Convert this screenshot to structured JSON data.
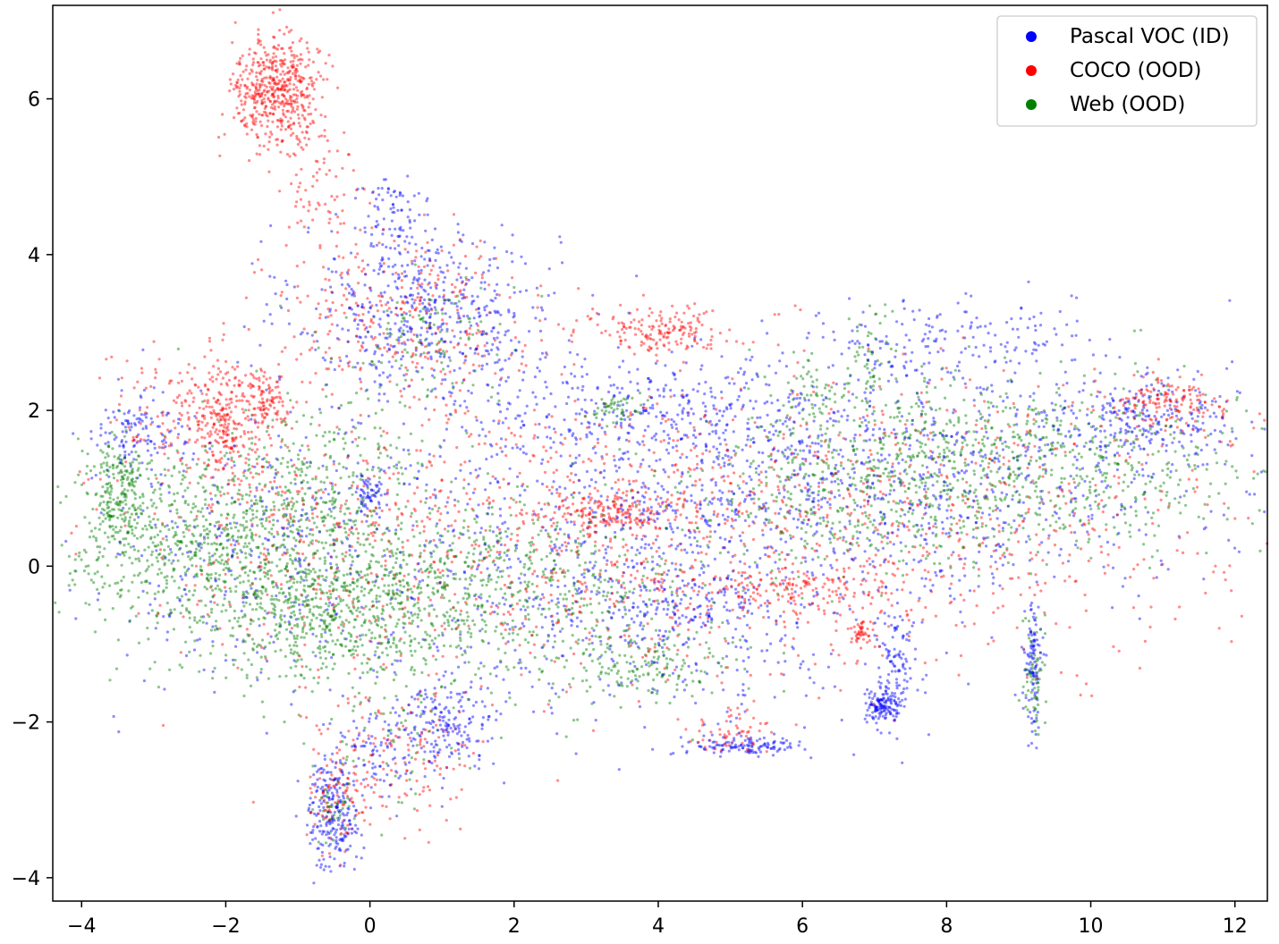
{
  "chart_data": {
    "type": "scatter",
    "title": "",
    "xlabel": "",
    "ylabel": "",
    "xlim": [
      -4.4,
      12.45
    ],
    "ylim": [
      -4.3,
      7.2
    ],
    "x_ticks": [
      -4,
      -2,
      0,
      2,
      4,
      6,
      8,
      10,
      12
    ],
    "y_ticks": [
      -4,
      -2,
      0,
      2,
      4,
      6
    ],
    "x_tick_labels": [
      "−4",
      "−2",
      "0",
      "2",
      "4",
      "6",
      "8",
      "10",
      "12"
    ],
    "y_tick_labels": [
      "−4",
      "−2",
      "0",
      "2",
      "4",
      "6"
    ],
    "grid": false,
    "legend_position": "top-right",
    "series": [
      {
        "name": "Pascal VOC (ID)",
        "color": "#0000ff",
        "clusters": [
          {
            "center": [
              0.8,
              3.3
            ],
            "spread": [
              0.9,
              0.55
            ],
            "count": 520
          },
          {
            "center": [
              -0.5,
              -3.2
            ],
            "spread": [
              0.18,
              0.35
            ],
            "count": 220
          },
          {
            "center": [
              1.1,
              -2.0
            ],
            "spread": [
              0.35,
              0.25
            ],
            "count": 150
          },
          {
            "center": [
              0.2,
              -2.4
            ],
            "spread": [
              0.45,
              0.3
            ],
            "count": 120
          },
          {
            "center": [
              -3.2,
              1.7
            ],
            "spread": [
              0.3,
              0.25
            ],
            "count": 110
          },
          {
            "center": [
              5.2,
              -2.3
            ],
            "spread": [
              0.4,
              0.06
            ],
            "count": 120
          },
          {
            "center": [
              7.1,
              -1.8
            ],
            "spread": [
              0.12,
              0.1
            ],
            "count": 120
          },
          {
            "center": [
              7.3,
              -1.3
            ],
            "spread": [
              0.15,
              0.4
            ],
            "count": 120
          },
          {
            "center": [
              9.2,
              -1.3
            ],
            "spread": [
              0.06,
              0.4
            ],
            "count": 110
          },
          {
            "center": [
              3.6,
              2.0
            ],
            "spread": [
              1.4,
              0.35
            ],
            "count": 280
          },
          {
            "center": [
              7.0,
              1.2
            ],
            "spread": [
              2.6,
              0.8
            ],
            "count": 1100
          },
          {
            "center": [
              8.0,
              2.9
            ],
            "spread": [
              0.9,
              0.25
            ],
            "count": 150
          },
          {
            "center": [
              3.5,
              0.0
            ],
            "spread": [
              2.0,
              1.0
            ],
            "count": 700
          },
          {
            "center": [
              -1.5,
              0.3
            ],
            "spread": [
              1.3,
              0.9
            ],
            "count": 350
          },
          {
            "center": [
              10.8,
              1.9
            ],
            "spread": [
              0.6,
              0.25
            ],
            "count": 200
          },
          {
            "center": [
              4.3,
              -0.5
            ],
            "spread": [
              0.8,
              0.4
            ],
            "count": 180
          },
          {
            "center": [
              0.0,
              0.9
            ],
            "spread": [
              0.1,
              0.15
            ],
            "count": 60
          },
          {
            "center": [
              0.3,
              4.4
            ],
            "spread": [
              0.2,
              0.3
            ],
            "count": 80
          }
        ]
      },
      {
        "name": "COCO (OOD)",
        "color": "#ff0000",
        "clusters": [
          {
            "center": [
              -1.3,
              6.1
            ],
            "spread": [
              0.3,
              0.35
            ],
            "count": 520
          },
          {
            "center": [
              -0.7,
              5.0
            ],
            "spread": [
              0.25,
              0.5
            ],
            "count": 80
          },
          {
            "center": [
              -2.0,
              1.8
            ],
            "spread": [
              0.25,
              0.4
            ],
            "count": 220
          },
          {
            "center": [
              -2.6,
              2.0
            ],
            "spread": [
              0.6,
              0.4
            ],
            "count": 150
          },
          {
            "center": [
              -1.4,
              2.1
            ],
            "spread": [
              0.15,
              0.2
            ],
            "count": 90
          },
          {
            "center": [
              4.0,
              3.0
            ],
            "spread": [
              0.45,
              0.15
            ],
            "count": 170
          },
          {
            "center": [
              0.5,
              3.2
            ],
            "spread": [
              1.0,
              0.55
            ],
            "count": 320
          },
          {
            "center": [
              3.3,
              0.7
            ],
            "spread": [
              0.5,
              0.12
            ],
            "count": 160
          },
          {
            "center": [
              6.5,
              0.6
            ],
            "spread": [
              2.8,
              0.9
            ],
            "count": 950
          },
          {
            "center": [
              2.0,
              0.2
            ],
            "spread": [
              2.0,
              1.0
            ],
            "count": 450
          },
          {
            "center": [
              11.1,
              2.1
            ],
            "spread": [
              0.4,
              0.15
            ],
            "count": 150
          },
          {
            "center": [
              0.2,
              -2.4
            ],
            "spread": [
              0.6,
              0.45
            ],
            "count": 150
          },
          {
            "center": [
              -0.5,
              -3.0
            ],
            "spread": [
              0.2,
              0.3
            ],
            "count": 80
          },
          {
            "center": [
              6.8,
              -0.85
            ],
            "spread": [
              0.08,
              0.08
            ],
            "count": 40
          },
          {
            "center": [
              5.0,
              -2.1
            ],
            "spread": [
              0.35,
              0.15
            ],
            "count": 60
          },
          {
            "center": [
              -1.2,
              0.3
            ],
            "spread": [
              1.2,
              0.8
            ],
            "count": 250
          },
          {
            "center": [
              5.8,
              -0.3
            ],
            "spread": [
              0.8,
              0.15
            ],
            "count": 150
          }
        ]
      },
      {
        "name": "Web (OOD)",
        "color": "#008000",
        "clusters": [
          {
            "center": [
              -2.5,
              0.3
            ],
            "spread": [
              1.0,
              0.6
            ],
            "count": 700
          },
          {
            "center": [
              -3.5,
              1.0
            ],
            "spread": [
              0.2,
              0.35
            ],
            "count": 200
          },
          {
            "center": [
              -0.5,
              -0.6
            ],
            "spread": [
              1.0,
              0.5
            ],
            "count": 700
          },
          {
            "center": [
              1.8,
              -0.3
            ],
            "spread": [
              1.5,
              0.6
            ],
            "count": 650
          },
          {
            "center": [
              -0.7,
              1.0
            ],
            "spread": [
              0.8,
              0.6
            ],
            "count": 300
          },
          {
            "center": [
              8.8,
              1.3
            ],
            "spread": [
              1.7,
              0.55
            ],
            "count": 850
          },
          {
            "center": [
              6.5,
              0.9
            ],
            "spread": [
              1.0,
              0.5
            ],
            "count": 250
          },
          {
            "center": [
              3.8,
              -1.3
            ],
            "spread": [
              0.6,
              0.2
            ],
            "count": 150
          },
          {
            "center": [
              9.2,
              -1.4
            ],
            "spread": [
              0.08,
              0.35
            ],
            "count": 70
          },
          {
            "center": [
              6.9,
              2.6
            ],
            "spread": [
              0.15,
              0.4
            ],
            "count": 60
          },
          {
            "center": [
              6.1,
              2.2
            ],
            "spread": [
              0.2,
              0.25
            ],
            "count": 50
          },
          {
            "center": [
              3.4,
              2.0
            ],
            "spread": [
              0.2,
              0.1
            ],
            "count": 50
          },
          {
            "center": [
              0.8,
              2.8
            ],
            "spread": [
              0.5,
              0.4
            ],
            "count": 120
          },
          {
            "center": [
              0.3,
              -2.2
            ],
            "spread": [
              0.5,
              0.4
            ],
            "count": 50
          },
          {
            "center": [
              -0.5,
              -3.1
            ],
            "spread": [
              0.15,
              0.2
            ],
            "count": 40
          }
        ]
      }
    ]
  }
}
